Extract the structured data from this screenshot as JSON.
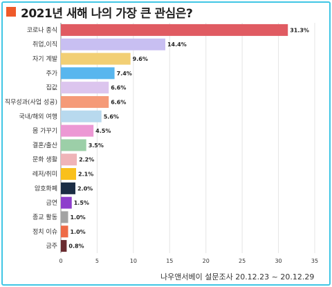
{
  "title": "2021년 새해 나의 가장 큰 관심은?",
  "source": "나우앤서베이 설문조사 20.12.23 ~ 20.12.29",
  "colors": {
    "frame": "#3fc6e4",
    "title_marker": "#ef5a2a"
  },
  "chart_data": {
    "type": "bar",
    "orientation": "horizontal",
    "title": "2021년 새해 나의 가장 큰 관심은?",
    "xlim": [
      0,
      35
    ],
    "x_ticks": [
      0,
      5,
      10,
      15,
      20,
      25,
      30,
      35
    ],
    "grid": true,
    "categories": [
      "코로나 종식",
      "취업,이직",
      "자기 계발",
      "주가",
      "집값",
      "직무성과(사업 성공)",
      "국내/해외 여행",
      "몸 가꾸기",
      "결혼/출산",
      "문화 생활",
      "레저/취미",
      "암호화폐",
      "금연",
      "종교 활동",
      "정치 이슈",
      "금주"
    ],
    "values": [
      31.3,
      14.4,
      9.6,
      7.4,
      6.6,
      6.6,
      5.6,
      4.5,
      3.5,
      2.2,
      2.1,
      2.0,
      1.5,
      1.0,
      1.0,
      0.8
    ],
    "value_labels": [
      "31.3%",
      "14.4%",
      "9.6%",
      "7.4%",
      "6.6%",
      "6.6%",
      "5.6%",
      "4.5%",
      "3.5%",
      "2.2%",
      "2.1%",
      "2.0%",
      "1.5%",
      "1.0%",
      "1.0%",
      "0.8%"
    ],
    "bar_colors": [
      "#e05b62",
      "#c8bff2",
      "#f2cf74",
      "#58b6ee",
      "#dcc5ee",
      "#f59a78",
      "#b8d9ee",
      "#ec98d4",
      "#9ccfa8",
      "#efb4b8",
      "#f9c01c",
      "#1b2d44",
      "#8e3fcc",
      "#a3a3a3",
      "#ee6a46",
      "#6a2c30"
    ]
  }
}
